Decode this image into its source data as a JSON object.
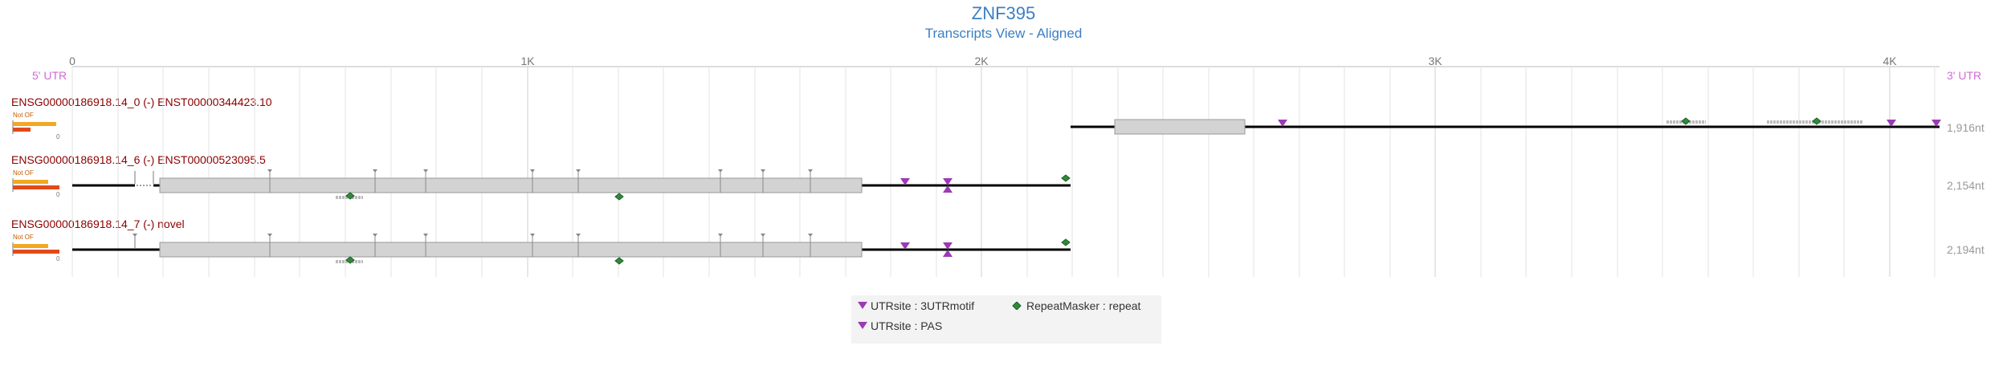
{
  "header": {
    "gene": "ZNF395",
    "view": "Transcripts View - Aligned"
  },
  "axis": {
    "utr5": "5' UTR",
    "utr3": "3' UTR",
    "ticks": [
      "0",
      "1K",
      "2K",
      "3K",
      "4K"
    ],
    "tick_values": [
      0,
      1000,
      2000,
      3000,
      4000
    ]
  },
  "colors": {
    "utr_label": "#d36ad6",
    "exon": "#d3d3d3",
    "intron": "#000000",
    "purple_marker": "#9b3bb5",
    "green_marker": "#2e8b3a",
    "orf_bar1": "#f5a623",
    "orf_bar2": "#e24a1a"
  },
  "transcripts": [
    {
      "label": "ENSG00000186918.14_0 (-) ENST00000344423.10",
      "orf": "Not OF",
      "orf_zero": "0",
      "length": "1,916nt"
    },
    {
      "label": "ENSG00000186918.14_6 (-) ENST00000523095.5",
      "orf": "Not OF",
      "orf_zero": "0",
      "length": "2,154nt"
    },
    {
      "label": "ENSG00000186918.14_7 (-) novel",
      "orf": "Not OF",
      "orf_zero": "0",
      "length": "2,194nt"
    }
  ],
  "legend": [
    {
      "label": "UTRsite : 3UTRmotif",
      "icon": "purple-triangle-down-icon"
    },
    {
      "label": "RepeatMasker : repeat",
      "icon": "green-diamond-icon"
    },
    {
      "label": "UTRsite : PAS",
      "icon": "purple-triangle-down-icon"
    }
  ]
}
